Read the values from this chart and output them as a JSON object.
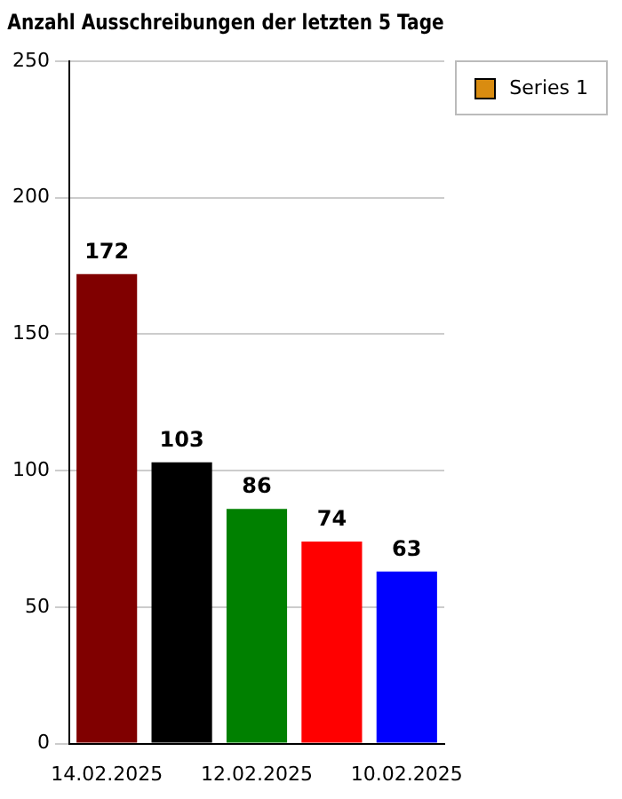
{
  "chart_data": {
    "type": "bar",
    "title": "Anzahl Ausschreibungen der letzten 5 Tage",
    "categories": [
      "14.02.2025",
      null,
      "12.02.2025",
      null,
      "10.02.2025"
    ],
    "series": [
      {
        "name": "Series 1",
        "color": "#d98c10",
        "colors": [
          "#800000",
          "#000000",
          "#008000",
          "#ff0000",
          "#0000ff"
        ],
        "values": [
          172,
          103,
          86,
          74,
          63
        ]
      }
    ],
    "ylim": [
      0,
      250
    ],
    "yticks": [
      0,
      50,
      100,
      150,
      200,
      250
    ],
    "grid": "y",
    "legend": "top right",
    "data_labels": true
  }
}
